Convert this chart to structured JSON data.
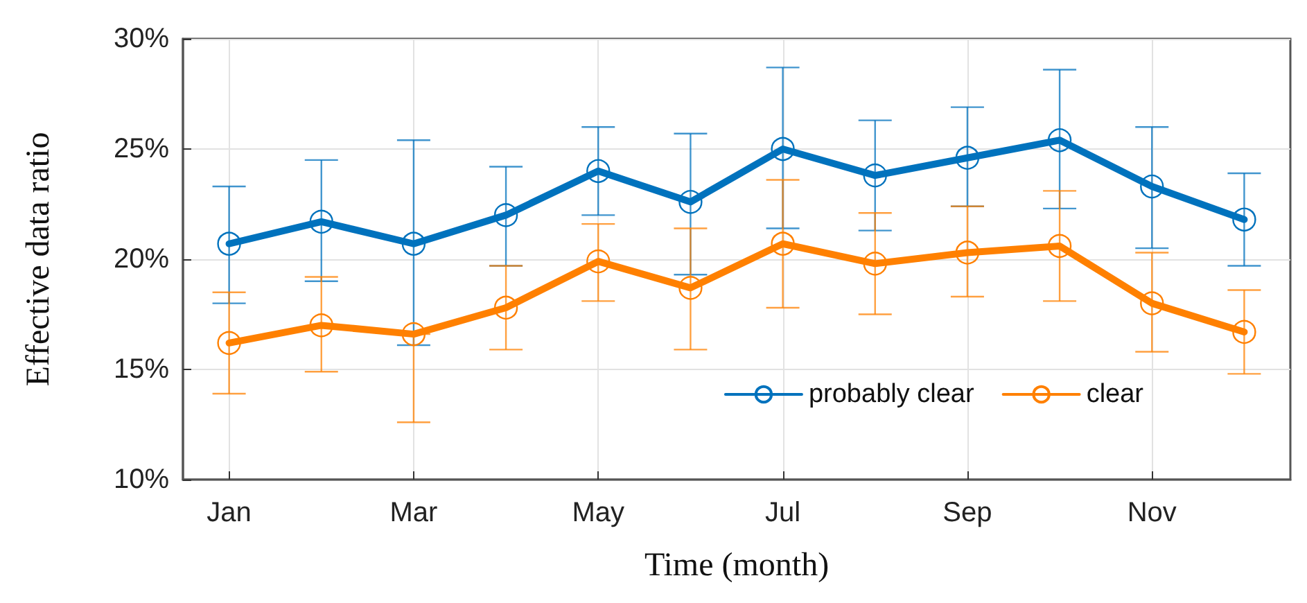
{
  "chart_data": {
    "type": "line",
    "xlabel": "Time (month)",
    "ylabel": "Effective data ratio",
    "categories": [
      "Jan",
      null,
      "Mar",
      null,
      "May",
      null,
      "Jul",
      null,
      "Sep",
      null,
      "Nov",
      null
    ],
    "ylim": [
      10,
      30
    ],
    "yticks": [
      {
        "value": 10,
        "label": "10%"
      },
      {
        "value": 15,
        "label": "15%"
      },
      {
        "value": 20,
        "label": "20%"
      },
      {
        "value": 25,
        "label": "25%"
      },
      {
        "value": 30,
        "label": "30%"
      }
    ],
    "grid": true,
    "legend": "bottom right",
    "marker": "circle",
    "line_style": "solid",
    "series": [
      {
        "name": "probably clear",
        "color": "#0072bd",
        "values": [
          20.7,
          21.7,
          20.7,
          22.0,
          24.0,
          22.6,
          25.0,
          23.8,
          24.6,
          25.4,
          23.3,
          21.8
        ],
        "errors": [
          [
            18.0,
            23.3
          ],
          [
            19.0,
            24.5
          ],
          [
            16.1,
            25.4
          ],
          [
            19.7,
            24.2
          ],
          [
            22.0,
            26.0
          ],
          [
            19.3,
            25.7
          ],
          [
            21.4,
            28.7
          ],
          [
            21.3,
            26.3
          ],
          [
            22.4,
            26.9
          ],
          [
            22.3,
            28.6
          ],
          [
            20.5,
            26.0
          ],
          [
            19.7,
            23.9
          ]
        ]
      },
      {
        "name": "clear",
        "color": "#ff8000",
        "values": [
          16.2,
          17.0,
          16.6,
          17.8,
          19.9,
          18.7,
          20.7,
          19.8,
          20.3,
          20.6,
          18.0,
          16.7
        ],
        "errors": [
          [
            13.9,
            18.5
          ],
          [
            14.9,
            19.2
          ],
          [
            12.6,
            16.6
          ],
          [
            15.9,
            19.7
          ],
          [
            18.1,
            21.6
          ],
          [
            15.9,
            21.4
          ],
          [
            17.8,
            23.6
          ],
          [
            17.5,
            22.1
          ],
          [
            18.3,
            22.4
          ],
          [
            18.1,
            23.1
          ],
          [
            15.8,
            20.3
          ],
          [
            14.8,
            18.6
          ]
        ]
      }
    ]
  }
}
